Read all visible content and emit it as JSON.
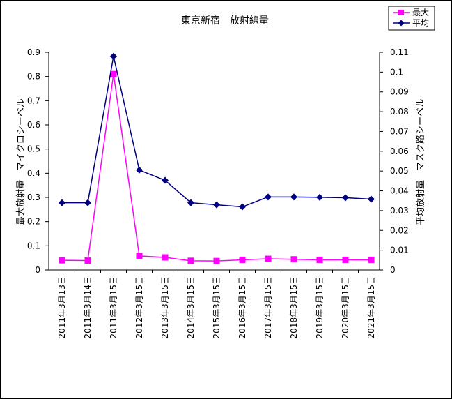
{
  "chart_data": {
    "type": "line",
    "title": "東京新宿　放射線量",
    "categories": [
      "2011年3月13日",
      "2011年3月14日",
      "2011年3月15日",
      "2012年3月15日",
      "2013年3月15日",
      "2014年3月15日",
      "2015年3月15日",
      "2016年3月15日",
      "2017年3月15日",
      "2018年3月15日",
      "2019年3月15日",
      "2020年3月15日",
      "2021年3月15日"
    ],
    "y_left": {
      "label": "最大放射量　マイクロシーベル",
      "range": [
        0,
        0.9
      ],
      "ticks": [
        "0",
        "0.1",
        "0.2",
        "0.3",
        "0.4",
        "0.5",
        "0.6",
        "0.7",
        "0.8",
        "0.9"
      ]
    },
    "y_right": {
      "label": "平均放射量　マスク路シーベル",
      "range": [
        0,
        0.11
      ],
      "ticks": [
        "0",
        "0.01",
        "0.02",
        "0.03",
        "0.04",
        "0.05",
        "0.06",
        "0.07",
        "0.08",
        "0.09",
        "0.1",
        "0.11"
      ]
    },
    "series": [
      {
        "name": "最大",
        "axis": "left",
        "color": "#ff00ff",
        "marker": "square",
        "values": [
          0.04,
          0.039,
          0.81,
          0.058,
          0.052,
          0.038,
          0.037,
          0.042,
          0.046,
          0.044,
          0.042,
          0.042,
          0.042
        ]
      },
      {
        "name": "平均",
        "axis": "right",
        "color": "#000080",
        "marker": "diamond",
        "values": [
          0.034,
          0.034,
          0.108,
          0.0505,
          0.0453,
          0.034,
          0.0329,
          0.0319,
          0.0369,
          0.0369,
          0.0367,
          0.0365,
          0.0358
        ]
      }
    ],
    "grid": false,
    "legend_position": "top-right"
  }
}
